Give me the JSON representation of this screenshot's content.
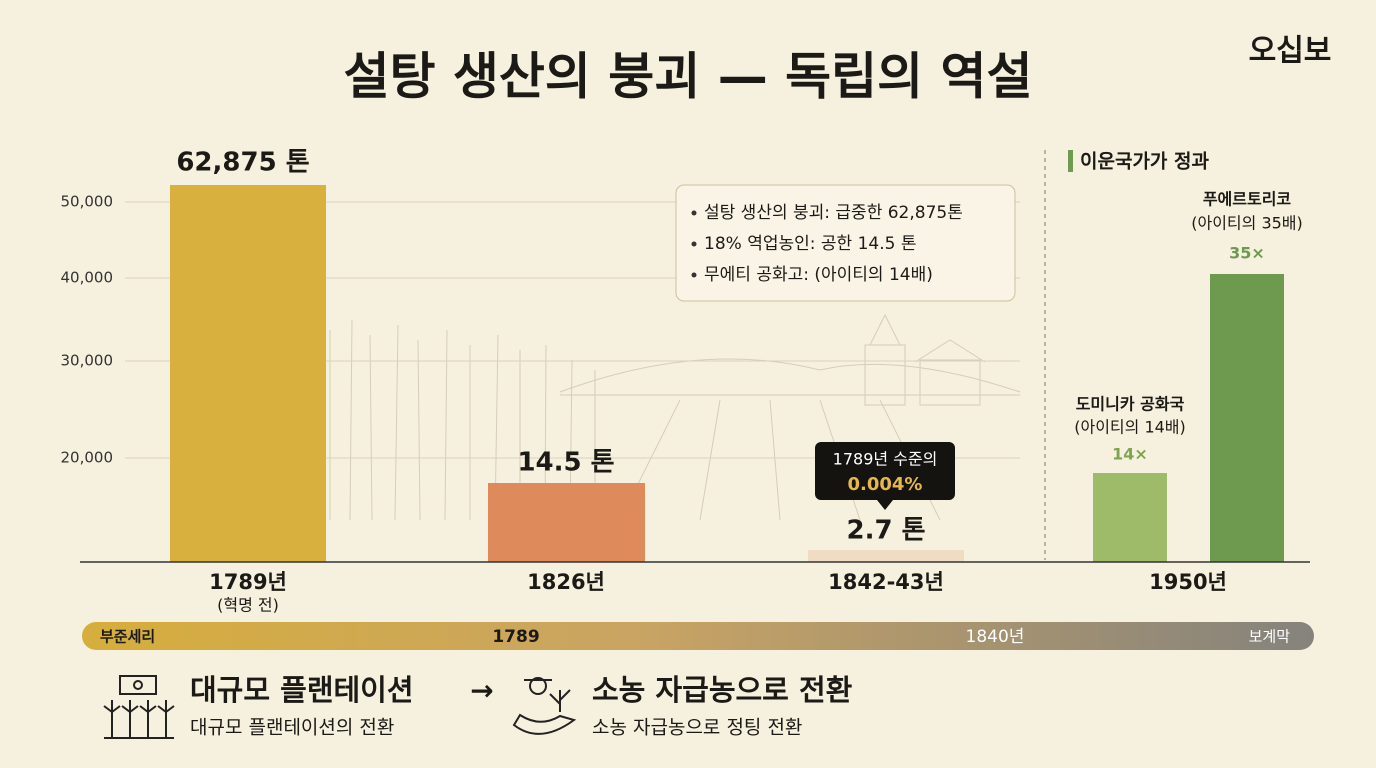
{
  "header": {
    "title": "설탕 생산의 붕괴 — 독립의 역설",
    "brand": "오십보"
  },
  "y_axis": {
    "ticks": [
      "50,000",
      "40,000",
      "30,000",
      "20,000"
    ]
  },
  "bars": [
    {
      "label": "62,875 톤",
      "year": "1789년",
      "note": "(혁명 전)"
    },
    {
      "label": "14.5 톤",
      "year": "1826년"
    },
    {
      "label": "2.7 톤",
      "year": "1842-43년",
      "callout": {
        "line1": "1789년 수준의",
        "line2": "0.004%"
      }
    }
  ],
  "summary_box": [
    "설탕 생산의 붕괴: 급중한 62,875톤",
    "18% 역업농인: 공한 14.5 톤",
    "무에티 공화고: (아이티의 14배)"
  ],
  "neighbors": {
    "heading": "이운국가가 정과",
    "year": "1950년",
    "items": [
      {
        "name": "도미니카 공화국",
        "note": "(아이티의 14배)",
        "multiplier": "14×"
      },
      {
        "name": "푸에르토리코",
        "note": "(아이티의 35배)",
        "multiplier": "35×"
      }
    ]
  },
  "timeline": [
    "부준세리",
    "1789",
    "1840년",
    "보계막"
  ],
  "transition": {
    "from": {
      "title": "대규모 플랜테이션",
      "subtitle": "대규모 플랜테이션의 전환"
    },
    "arrow": "→",
    "to": {
      "title": "소농 자급농으로 전환",
      "subtitle": "소농 자급농으로 정팅 전환"
    }
  }
}
